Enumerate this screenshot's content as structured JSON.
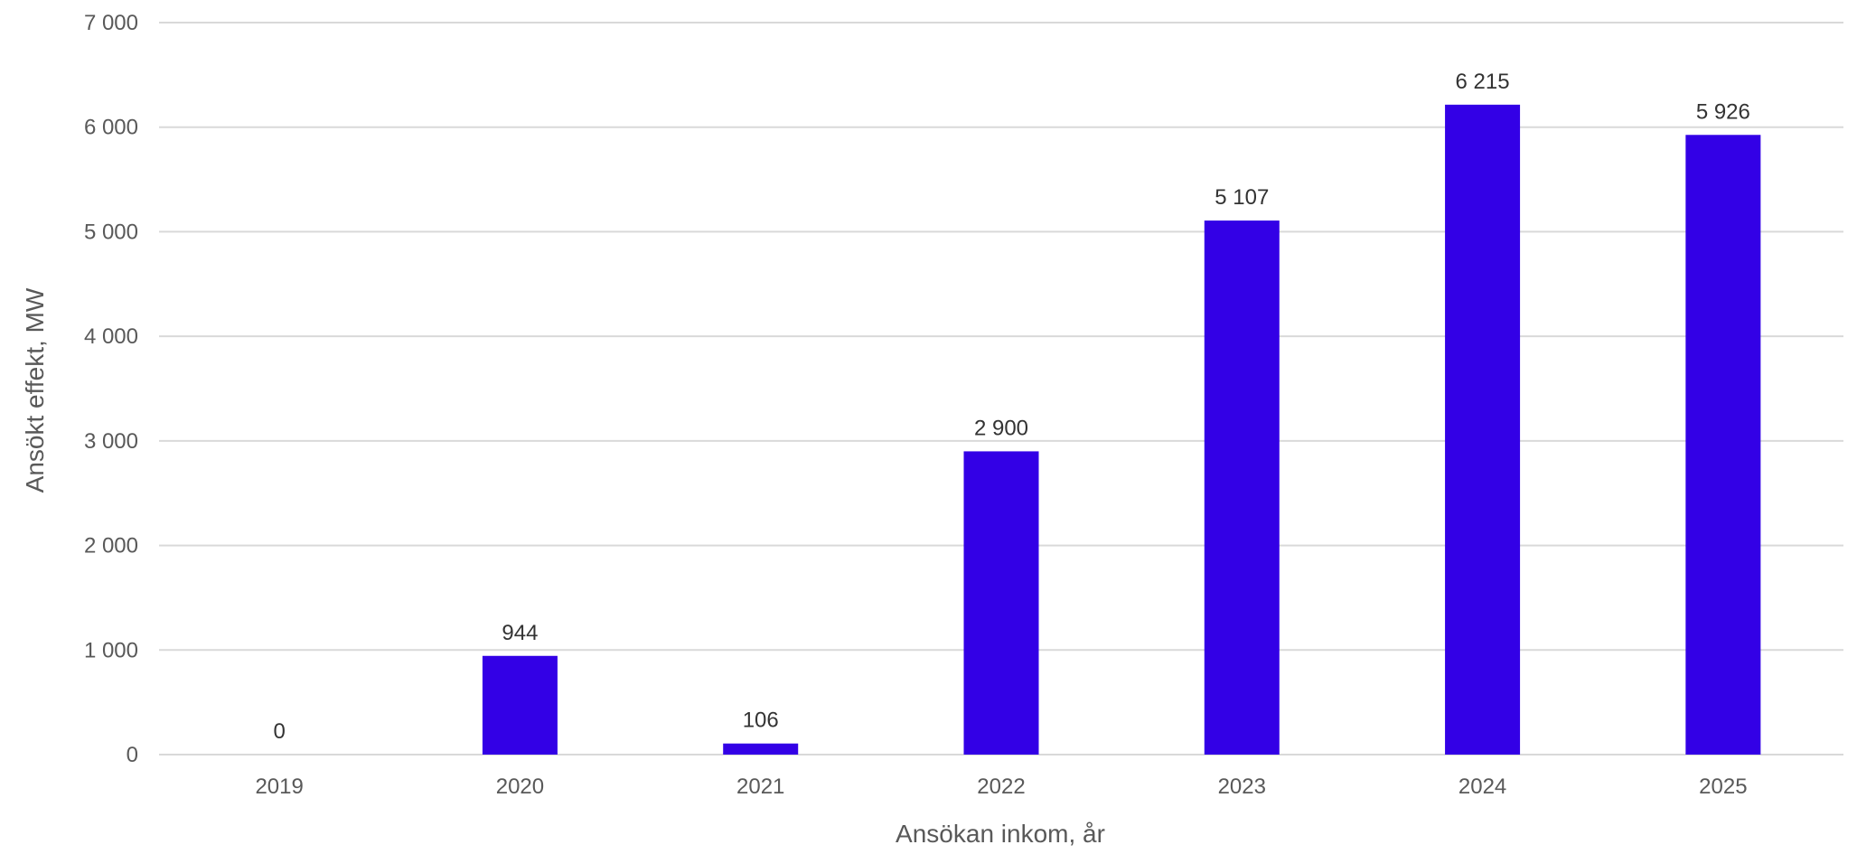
{
  "chart_data": {
    "type": "bar",
    "categories": [
      "2019",
      "2020",
      "2021",
      "2022",
      "2023",
      "2024",
      "2025"
    ],
    "values": [
      0,
      944,
      106,
      2900,
      5107,
      6215,
      5926
    ],
    "value_labels": [
      "0",
      "944",
      "106",
      "2 900",
      "5 107",
      "6 215",
      "5 926"
    ],
    "title": "",
    "xlabel": "Ansökan inkom, år",
    "ylabel": "Ansökt effekt, MW",
    "ylim": [
      0,
      7000
    ],
    "yticks": [
      0,
      1000,
      2000,
      3000,
      4000,
      5000,
      6000,
      7000
    ],
    "ytick_labels": [
      "0",
      "1 000",
      "2 000",
      "3 000",
      "4 000",
      "5 000",
      "6 000",
      "7 000"
    ],
    "grid": "horizontal",
    "legend": "none",
    "colors": {
      "bar": "#3300e6",
      "grid": "#d9d9d9",
      "tick_text": "#595959",
      "label_text": "#333333"
    }
  }
}
